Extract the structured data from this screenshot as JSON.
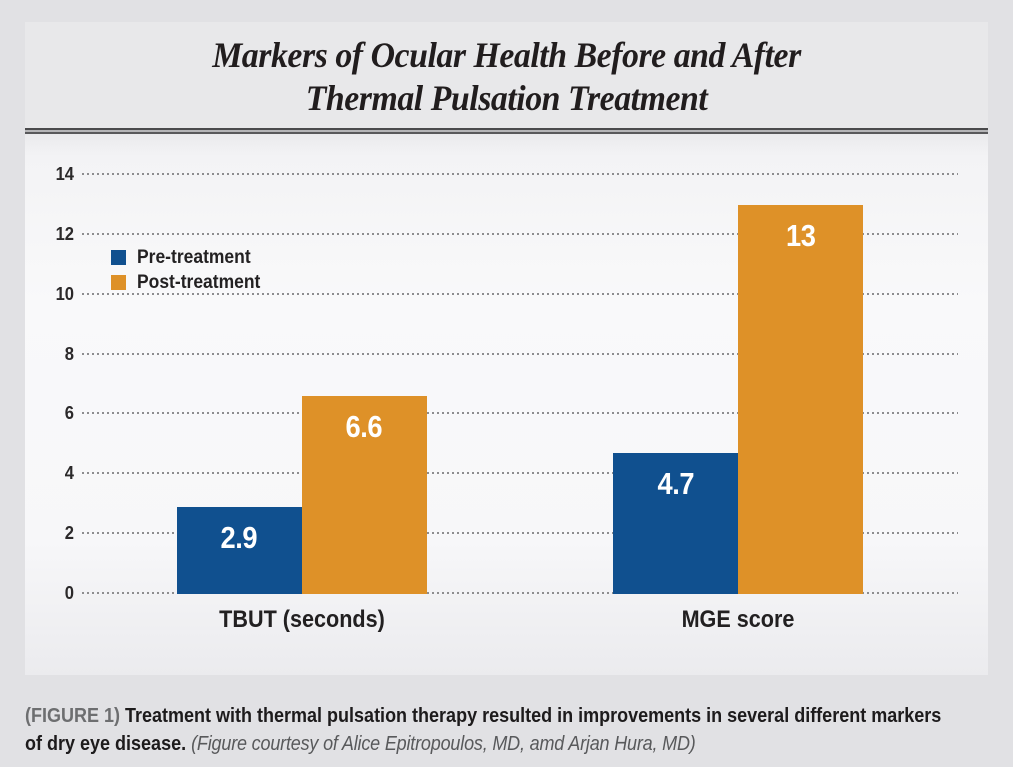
{
  "title": {
    "line1": "Markers of Ocular Health Before and After",
    "line2": "Thermal Pulsation Treatment"
  },
  "legend": [
    {
      "label": "Pre-treatment",
      "color": "#10508f"
    },
    {
      "label": "Post-treatment",
      "color": "#de9128"
    }
  ],
  "chart_data": {
    "type": "bar",
    "title": "Markers of Ocular Health Before and After Thermal Pulsation Treatment",
    "categories": [
      "TBUT (seconds)",
      "MGE score"
    ],
    "series": [
      {
        "name": "Pre-treatment",
        "color": "#10508f",
        "values": [
          2.9,
          4.7
        ],
        "labels": [
          "2.9",
          "4.7"
        ]
      },
      {
        "name": "Post-treatment",
        "color": "#de9128",
        "values": [
          6.6,
          13
        ],
        "labels": [
          "6.6",
          "13"
        ]
      }
    ],
    "ylim": [
      0,
      14
    ],
    "yticks": [
      14,
      12,
      10,
      8,
      6,
      4,
      2,
      0
    ],
    "grid": "dotted horizontal gridlines",
    "legend_position": "upper left inside plot",
    "bar_value_labels": "white, inside top of bars"
  },
  "caption": {
    "figure_tag": "(FIGURE 1)",
    "text_line1": "Treatment with thermal pulsation therapy resulted in improvements in several different markers",
    "text_line2": "of dry eye disease.",
    "courtesy": "(Figure courtesy of Alice Epitropoulos, MD, amd Arjan Hura, MD)"
  }
}
